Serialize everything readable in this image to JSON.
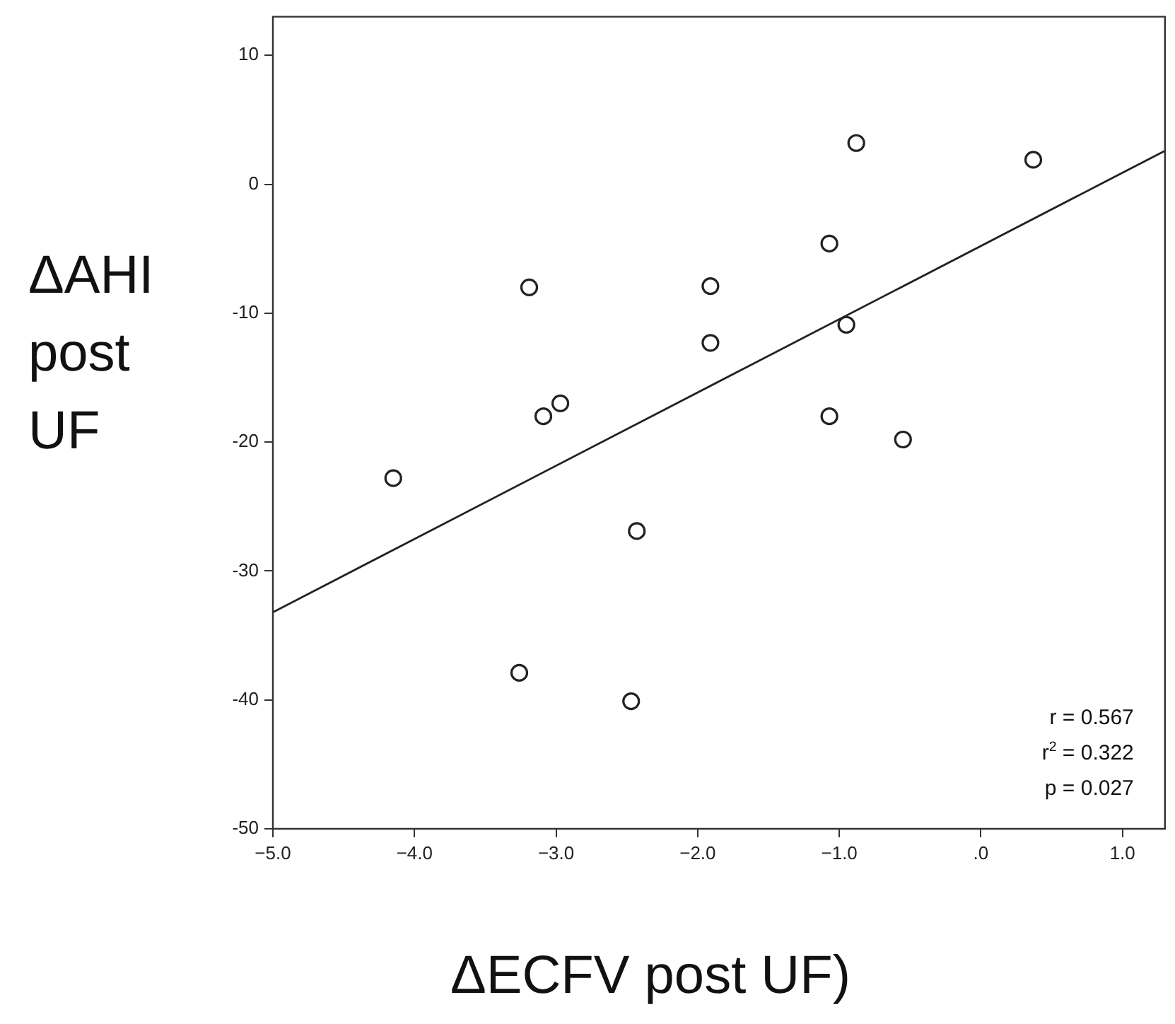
{
  "chart_data": {
    "type": "scatter",
    "xlabel": "ΔECFV post UF)",
    "ylabel": "ΔAHI post UF",
    "xlim": [
      -5,
      1.3
    ],
    "ylim": [
      -50,
      13
    ],
    "xticks": [
      {
        "value": -5,
        "label": "−5.0"
      },
      {
        "value": -4,
        "label": "−4.0"
      },
      {
        "value": -3,
        "label": "−3.0"
      },
      {
        "value": -2,
        "label": "−2.0"
      },
      {
        "value": -1,
        "label": "−1.0"
      },
      {
        "value": 0,
        "label": ".0"
      },
      {
        "value": 1,
        "label": "1.0"
      }
    ],
    "yticks": [
      10,
      0,
      -10,
      -20,
      -30,
      -40,
      -50
    ],
    "grid": false,
    "legend": false,
    "marker": "circle",
    "series": [
      {
        "color": "#222222",
        "x": [
          -4.15,
          -3.19,
          -3.09,
          -2.97,
          -3.26,
          -2.47,
          -2.43,
          -1.91,
          -1.91,
          -1.07,
          -0.88,
          -0.95,
          -1.07,
          -0.55,
          0.37
        ],
        "values": [
          -22.8,
          -8.0,
          -18.0,
          -17.0,
          -37.9,
          -40.1,
          -26.9,
          -7.9,
          -12.3,
          -4.6,
          3.2,
          -10.9,
          -18.0,
          -19.8,
          1.9
        ]
      },
      {
        "type": "line",
        "color": "#222222",
        "line_style": "solid",
        "marker": "none",
        "x": [
          -5,
          1.3
        ],
        "values": [
          -33.2,
          2.6
        ]
      }
    ],
    "annotations": [
      "r = 0.567",
      "r$^{2}$ = 0.322",
      "p = 0.027"
    ]
  }
}
